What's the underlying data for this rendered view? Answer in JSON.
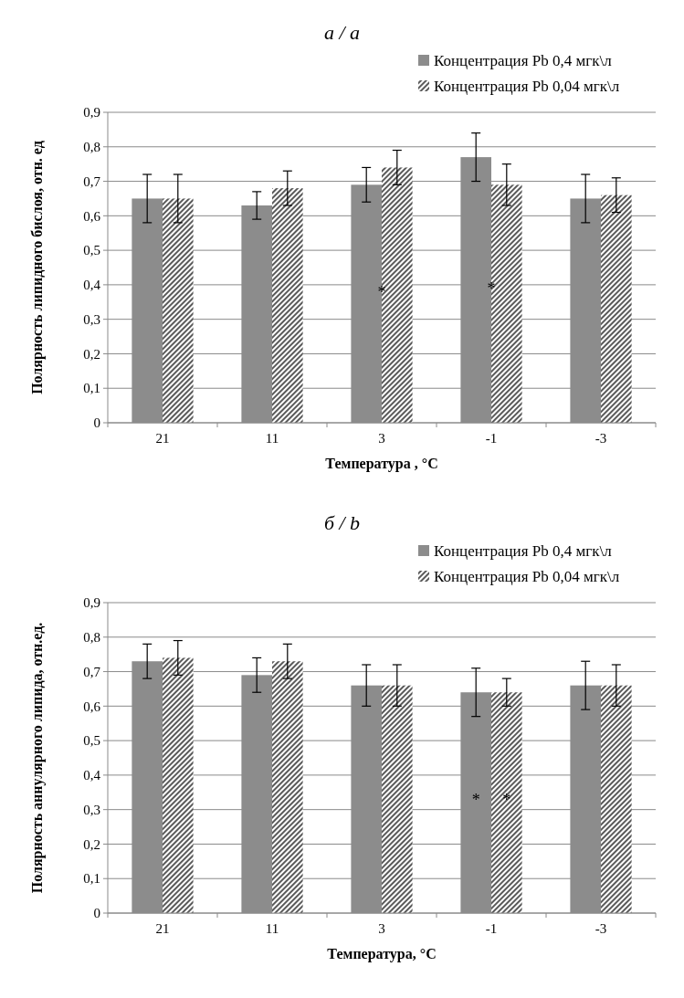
{
  "chart_data": [
    {
      "type": "bar",
      "title": "a / a",
      "xlabel": "Температура , °С",
      "ylabel": "Полярность липидного бислоя, отн. ед",
      "categories": [
        "21",
        "11",
        "3",
        "-1",
        "-3"
      ],
      "series": [
        {
          "name": "Концентрация Pb 0,4 мгк\\л",
          "color": "#8c8c8c",
          "values": [
            0.65,
            0.63,
            0.69,
            0.77,
            0.65
          ],
          "errors": [
            0.07,
            0.04,
            0.05,
            0.07,
            0.07
          ]
        },
        {
          "name": "Концентрация Pb 0,04 мгк\\л",
          "color": "#5a5a5a",
          "values": [
            0.65,
            0.68,
            0.74,
            0.69,
            0.66
          ],
          "errors": [
            0.07,
            0.05,
            0.05,
            0.06,
            0.05
          ]
        }
      ],
      "ylim": [
        0,
        0.9
      ],
      "yticks": [
        0,
        {
          "value": 0.1,
          "label": "0,1"
        },
        {
          "value": 0.2,
          "label": "0,2"
        },
        {
          "value": 0.3,
          "label": "0,3"
        },
        {
          "value": 0.4,
          "label": "0,4"
        },
        {
          "value": 0.5,
          "label": "0,5"
        },
        {
          "value": 0.6,
          "label": "0,6"
        },
        {
          "value": 0.7,
          "label": "0,7"
        },
        {
          "value": 0.8,
          "label": "0,8"
        },
        {
          "value": 0.9,
          "label": "0,9"
        }
      ],
      "grid": "y",
      "legend": "top right",
      "annotations": [
        {
          "text": "*",
          "x": "3",
          "y": 0.38
        },
        {
          "text": "*",
          "x": "-1",
          "y": 0.39
        }
      ]
    },
    {
      "type": "bar",
      "title": "б / b",
      "xlabel": "Температура, °С",
      "ylabel": "Полярность аннулярного липида, отн.ед.",
      "categories": [
        "21",
        "11",
        "3",
        "-1",
        "-3"
      ],
      "series": [
        {
          "name": "Концентрация Pb 0,4 мгк\\л",
          "color": "#8c8c8c",
          "values": [
            0.73,
            0.69,
            0.66,
            0.64,
            0.66
          ],
          "errors": [
            0.05,
            0.05,
            0.06,
            0.07,
            0.07
          ]
        },
        {
          "name": "Концентрация Pb 0,04 мгк\\л",
          "color": "#5a5a5a",
          "values": [
            0.74,
            0.73,
            0.66,
            0.64,
            0.66
          ],
          "errors": [
            0.05,
            0.05,
            0.06,
            0.04,
            0.06
          ]
        }
      ],
      "ylim": [
        0,
        0.9
      ],
      "yticks": [
        0,
        {
          "value": 0.1,
          "label": "0,1"
        },
        {
          "value": 0.2,
          "label": "0,2"
        },
        {
          "value": 0.3,
          "label": "0,3"
        },
        {
          "value": 0.4,
          "label": "0,4"
        },
        {
          "value": 0.5,
          "label": "0,5"
        },
        {
          "value": 0.6,
          "label": "0,6"
        },
        {
          "value": 0.7,
          "label": "0,7"
        },
        {
          "value": 0.8,
          "label": "0,8"
        },
        {
          "value": 0.9,
          "label": "0,9"
        }
      ],
      "grid": "y",
      "legend": "top right",
      "annotations": [
        {
          "text": "*",
          "x": "-1",
          "y": 0.33
        },
        {
          "text": "*",
          "x": "-1",
          "y": 0.33
        }
      ]
    }
  ]
}
